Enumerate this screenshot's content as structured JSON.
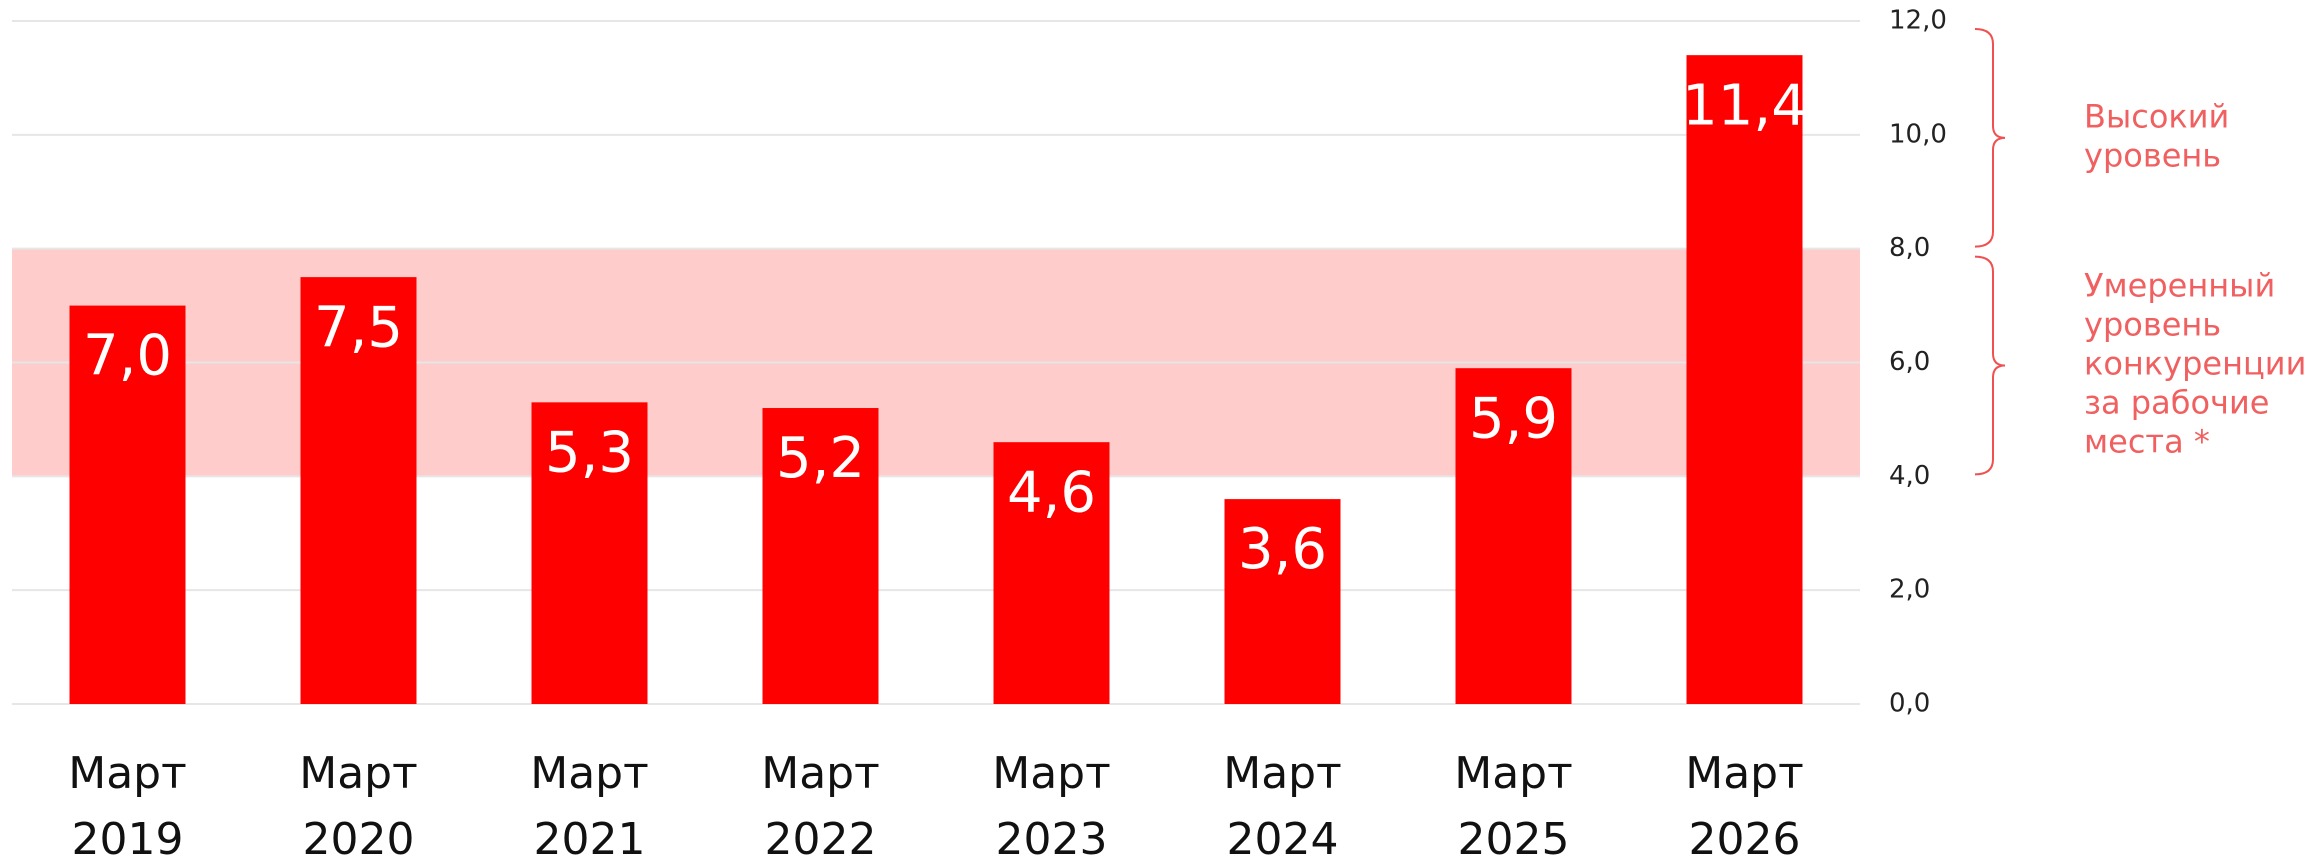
{
  "chart_data": {
    "type": "bar",
    "categories": [
      [
        "Март",
        "2019"
      ],
      [
        "Март",
        "2020"
      ],
      [
        "Март",
        "2021"
      ],
      [
        "Март",
        "2022"
      ],
      [
        "Март",
        "2023"
      ],
      [
        "Март",
        "2024"
      ],
      [
        "Март",
        "2025"
      ],
      [
        "Март",
        "2026"
      ]
    ],
    "values": [
      7.0,
      7.5,
      5.3,
      5.2,
      4.6,
      3.6,
      5.9,
      11.4
    ],
    "value_labels": [
      "7,0",
      "7,5",
      "5,3",
      "5,2",
      "4,6",
      "3,6",
      "5,9",
      "11,4"
    ],
    "color": "#ff0000",
    "ylim": [
      0,
      12
    ],
    "yticks": [
      {
        "value": 0,
        "label": "0,0"
      },
      {
        "value": 2,
        "label": "2,0"
      },
      {
        "value": 4,
        "label": "4,0"
      },
      {
        "value": 6,
        "label": "6,0"
      },
      {
        "value": 8,
        "label": "8,0"
      },
      {
        "value": 10,
        "label": "10,0"
      },
      {
        "value": 12,
        "label": "12,0"
      }
    ],
    "grid": true,
    "band": {
      "range": [
        4,
        8
      ],
      "color": "#ffcccc"
    },
    "annotations": [
      {
        "lines": [
          "Высокий",
          "уровень"
        ],
        "range": [
          8,
          12
        ]
      },
      {
        "lines": [
          "Умеренный",
          "уровень",
          "конкуренции",
          "за рабочие",
          "места *"
        ],
        "range": [
          4,
          8
        ]
      }
    ]
  }
}
